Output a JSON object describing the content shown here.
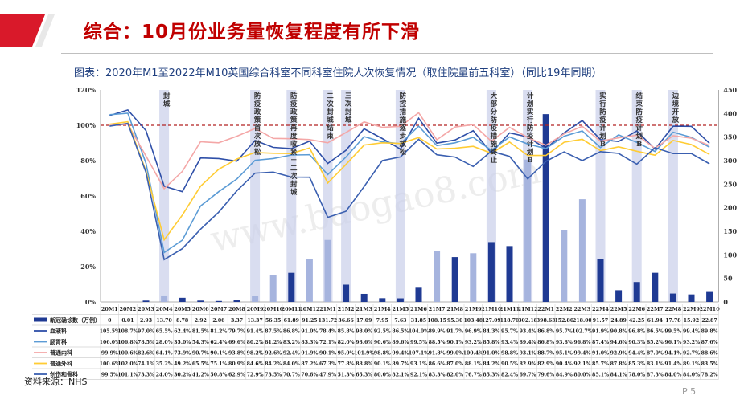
{
  "header": {
    "title": "综合：10月份业务量恢复程度有所下滑",
    "subtitle": "图表：2020年M1至2022年M10英国综合科室不同科室住院人次恢复情况（取住院量前五科室）（同比19年同期）",
    "source": "资料来源：NHS",
    "page": "P 5",
    "watermark": "www.baogao8.com"
  },
  "colors": {
    "title_red": "#c00000",
    "subtitle_blue": "#1f3f7f",
    "bar_dark": "#1f3a93",
    "bar_light": "#a6b4de",
    "shade": "#c9cee9",
    "refline": "#b22222",
    "corner": "#d9192a"
  },
  "chart_data": {
    "type": "bar+line",
    "categories": [
      "20M1",
      "20M2",
      "20M3",
      "20M4",
      "20M5",
      "20M6",
      "20M7",
      "20M8",
      "20M9",
      "20M10",
      "20M11",
      "20M12",
      "21M1",
      "21M2",
      "21M3",
      "21M4",
      "21M5",
      "21M6",
      "21M7",
      "21M8",
      "21M9",
      "21M10",
      "21M11",
      "21M12",
      "22M1",
      "22M2",
      "22M3",
      "22M4",
      "22M5",
      "22M6",
      "22M7",
      "22M8",
      "22M9",
      "22M10"
    ],
    "y_left": {
      "ticks": [
        "0%",
        "20%",
        "40%",
        "60%",
        "80%",
        "100%",
        "120%"
      ],
      "range": [
        0,
        120
      ]
    },
    "y_right": {
      "ticks": [
        "0",
        "50",
        "100",
        "150",
        "200",
        "250",
        "300",
        "350",
        "400",
        "450"
      ],
      "range": [
        0,
        450
      ]
    },
    "reference_line": 100,
    "bar_series": {
      "name": "新冠确诊数（万例）",
      "values_text": [
        "0",
        "0.01",
        "2.93",
        "13.70",
        "8.78",
        "2.92",
        "2.06",
        "3.37",
        "13.37",
        "56.35",
        "61.89",
        "91.25",
        "131.72",
        "36.66",
        "17.09",
        "7.95",
        "7.63",
        "31.85",
        "108.15",
        "95.30",
        "103.48",
        "127.09",
        "118.70",
        "302.18",
        "398.63",
        "152.80",
        "218.00",
        "91.57",
        "24.89",
        "42.25",
        "61.94",
        "17.78",
        "15.92",
        "22.87"
      ],
      "values": [
        0,
        0.01,
        2.93,
        13.7,
        8.78,
        2.92,
        2.06,
        3.37,
        13.37,
        56.35,
        61.89,
        91.25,
        131.72,
        36.66,
        17.09,
        7.95,
        7.63,
        31.85,
        108.15,
        95.3,
        103.48,
        127.09,
        118.7,
        302.18,
        398.63,
        152.8,
        218.0,
        91.57,
        24.89,
        42.25,
        61.94,
        17.78,
        15.92,
        22.87
      ],
      "light_indexes": [
        3,
        8,
        9,
        11,
        12,
        18,
        20,
        23,
        25,
        26
      ]
    },
    "line_series": [
      {
        "name": "血液科",
        "color": "#2e4fa8",
        "values_text": [
          "105.5%",
          "108.7%",
          "97.0%",
          "65.5%",
          "62.4%",
          "81.5%",
          "81.2%",
          "79.7%",
          "91.4%",
          "87.5%",
          "86.8%",
          "91.0%",
          "78.4%",
          "85.8%",
          "98.0%",
          "92.5%",
          "86.5%",
          "104.0%",
          "89.9%",
          "91.7%",
          "96.9%",
          "84.3%",
          "95.7%",
          "93.4%",
          "86.8%",
          "95.7%",
          "102.7%",
          "91.9%",
          "90.8%",
          "96.8%",
          "86.5%",
          "99.5%",
          "99.4%",
          "89.8%"
        ],
        "values": [
          105.5,
          108.7,
          97.0,
          65.5,
          62.4,
          81.5,
          81.2,
          79.7,
          91.4,
          87.5,
          86.8,
          91.0,
          78.4,
          85.8,
          98.0,
          92.5,
          86.5,
          104.0,
          89.9,
          91.7,
          96.9,
          84.3,
          95.7,
          93.4,
          86.8,
          95.7,
          102.7,
          91.9,
          90.8,
          96.8,
          86.5,
          99.5,
          99.4,
          89.8
        ]
      },
      {
        "name": "肠胃科",
        "color": "#5b9bd5",
        "values_text": [
          "106.0%",
          "106.8%",
          "78.5%",
          "28.0%",
          "35.0%",
          "54.3%",
          "62.4%",
          "69.6%",
          "80.2%",
          "81.2%",
          "83.2%",
          "83.3%",
          "72.1%",
          "82.0%",
          "93.6%",
          "90.6%",
          "89.6%",
          "99.5%",
          "88.5%",
          "90.1%",
          "93.2%",
          "85.8%",
          "93.4%",
          "89.4%",
          "86.8%",
          "93.8%",
          "96.8%",
          "87.4%",
          "94.6%",
          "90.3%",
          "85.2%",
          "96.1%",
          "93.2%",
          "87.6%"
        ],
        "values": [
          106.0,
          106.8,
          78.5,
          28.0,
          35.0,
          54.3,
          62.4,
          69.6,
          80.2,
          81.2,
          83.2,
          83.3,
          72.1,
          82.0,
          93.6,
          90.6,
          89.6,
          99.5,
          88.5,
          90.1,
          93.2,
          85.8,
          93.4,
          89.4,
          86.8,
          93.8,
          96.8,
          87.4,
          94.6,
          90.3,
          85.2,
          96.1,
          93.2,
          87.6
        ]
      },
      {
        "name": "普通内科",
        "color": "#f4a7a7",
        "values_text": [
          "99.9%",
          "100.6%",
          "82.6%",
          "64.1%",
          "73.9%",
          "90.7%",
          "90.1%",
          "93.8%",
          "98.2%",
          "92.6%",
          "92.4%",
          "91.9%",
          "90.1%",
          "95.9%",
          "101.9%",
          "98.8%",
          "99.4%",
          "107.1%",
          "91.8%",
          "99.0%",
          "100.4%",
          "91.0%",
          "98.8%",
          "93.1%",
          "88.7%",
          "95.1%",
          "99.4%",
          "91.0%",
          "92.9%",
          "94.4%",
          "87.0%",
          "94.1%",
          "92.7%",
          "88.6%"
        ],
        "values": [
          99.9,
          100.6,
          82.6,
          64.1,
          73.9,
          90.7,
          90.1,
          93.8,
          98.2,
          92.6,
          92.4,
          91.9,
          90.1,
          95.9,
          101.9,
          98.8,
          99.4,
          107.1,
          91.8,
          99.0,
          100.4,
          91.0,
          98.8,
          93.1,
          88.7,
          95.1,
          99.4,
          91.0,
          92.9,
          94.4,
          87.0,
          94.1,
          92.7,
          88.6
        ]
      },
      {
        "name": "普通外科",
        "color": "#ffcc33",
        "values_text": [
          "100.6%",
          "102.0%",
          "74.1%",
          "35.2%",
          "49.2%",
          "65.5%",
          "75.1%",
          "80.9%",
          "84.6%",
          "84.2%",
          "84.0%",
          "87.2%",
          "67.3%",
          "77.8%",
          "88.8%",
          "90.1%",
          "89.7%",
          "93.1%",
          "86.6%",
          "87.0%",
          "88.1%",
          "84.2%",
          "90.5%",
          "82.9%",
          "82.9%",
          "90.4%",
          "92.1%",
          "85.7%",
          "87.8%",
          "85.3%",
          "83.1%",
          "91.4%",
          "89.1%",
          "83.5%"
        ],
        "values": [
          100.6,
          102.0,
          74.1,
          35.2,
          49.2,
          65.5,
          75.1,
          80.9,
          84.6,
          84.2,
          84.0,
          87.2,
          67.3,
          77.8,
          88.8,
          90.1,
          89.7,
          93.1,
          86.6,
          87.0,
          88.1,
          84.2,
          90.5,
          82.9,
          82.9,
          90.4,
          92.1,
          85.7,
          87.8,
          85.3,
          83.1,
          91.4,
          89.1,
          83.5
        ]
      },
      {
        "name": "创伤和骨科",
        "color": "#3a5fb0",
        "values_text": [
          "99.5%",
          "101.1%",
          "73.3%",
          "24.0%",
          "30.2%",
          "41.2%",
          "50.8%",
          "62.9%",
          "72.9%",
          "73.5%",
          "70.7%",
          "70.6%",
          "47.9%",
          "51.3%",
          "65.3%",
          "80.0%",
          "82.1%",
          "92.1%",
          "83.3%",
          "82.0%",
          "76.7%",
          "85.3%",
          "82.4%",
          "69.7%",
          "79.6%",
          "84.9%",
          "80.0%",
          "85.1%",
          "84.1%",
          "78.0%",
          "87.3%",
          "84.0%",
          "84.0%",
          "78.2%"
        ],
        "values": [
          99.5,
          101.1,
          73.3,
          24.0,
          30.2,
          41.2,
          50.8,
          62.9,
          72.9,
          73.5,
          70.7,
          70.6,
          47.9,
          51.3,
          65.3,
          80.0,
          82.1,
          92.1,
          83.3,
          82.0,
          76.7,
          85.3,
          82.4,
          69.7,
          79.6,
          84.9,
          80.0,
          85.1,
          84.1,
          78.0,
          87.3,
          84.0,
          84.0,
          78.2
        ]
      }
    ],
    "annotations": [
      {
        "index": 3,
        "text": "封城"
      },
      {
        "index": 8,
        "text": "防疫政策首次放松"
      },
      {
        "index": 10,
        "text": "防疫政策再度收紧－二次封城"
      },
      {
        "index": 12,
        "text": "二次封城结束"
      },
      {
        "index": 13,
        "text": "三次封城"
      },
      {
        "index": 16,
        "text": "防控措施逐步放松"
      },
      {
        "index": 21,
        "text": "大部分防疫措施终止"
      },
      {
        "index": 23,
        "text": "计划实行防疫计划B"
      },
      {
        "index": 27,
        "text": "实行防疫计划B"
      },
      {
        "index": 29,
        "text": "结束防疫计划B"
      },
      {
        "index": 31,
        "text": "边境开放"
      }
    ]
  }
}
